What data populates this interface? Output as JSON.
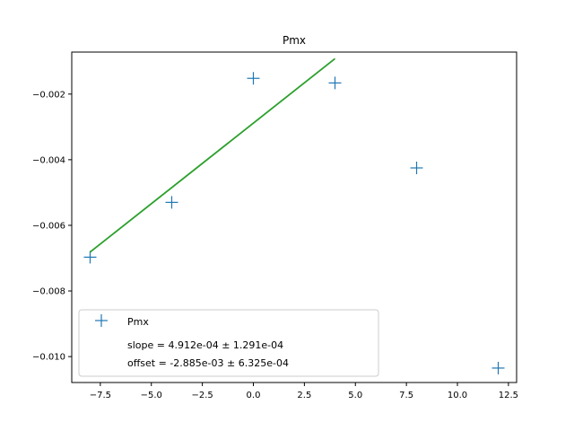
{
  "chart_data": {
    "type": "scatter",
    "title": "Pmx",
    "xlabel": "",
    "ylabel": "",
    "xlim": [
      -8.9,
      12.9
    ],
    "ylim": [
      -0.01079,
      -0.00072
    ],
    "xticks": [
      -7.5,
      -5.0,
      -2.5,
      0.0,
      2.5,
      5.0,
      7.5,
      10.0,
      12.5
    ],
    "xtick_labels": [
      "−7.5",
      "−5.0",
      "−2.5",
      "0.0",
      "2.5",
      "5.0",
      "7.5",
      "10.0",
      "12.5"
    ],
    "yticks": [
      -0.002,
      -0.004,
      -0.006,
      -0.008,
      -0.01
    ],
    "ytick_labels": [
      "−0.002",
      "−0.004",
      "−0.006",
      "−0.008",
      "−0.010"
    ],
    "grid": false,
    "legend_position": "lower-left",
    "series": [
      {
        "name": "Pmx",
        "kind": "markers",
        "marker": "plus",
        "color": "#1f77b4",
        "x": [
          -8,
          -4,
          0,
          4,
          8,
          12
        ],
        "y": [
          -0.00697,
          -0.0053,
          -0.00152,
          -0.00166,
          -0.00425,
          -0.01035
        ]
      },
      {
        "kind": "fit-line",
        "color": "#2ca02c",
        "slope": 0.0004912,
        "offset": -0.002885,
        "x_range": [
          -8,
          4
        ]
      }
    ],
    "legend": {
      "entries": [
        "Pmx"
      ],
      "lines": [
        "slope = 4.912e-04 ± 1.291e-04",
        "offset = -2.885e-03 ± 6.325e-04"
      ]
    }
  }
}
